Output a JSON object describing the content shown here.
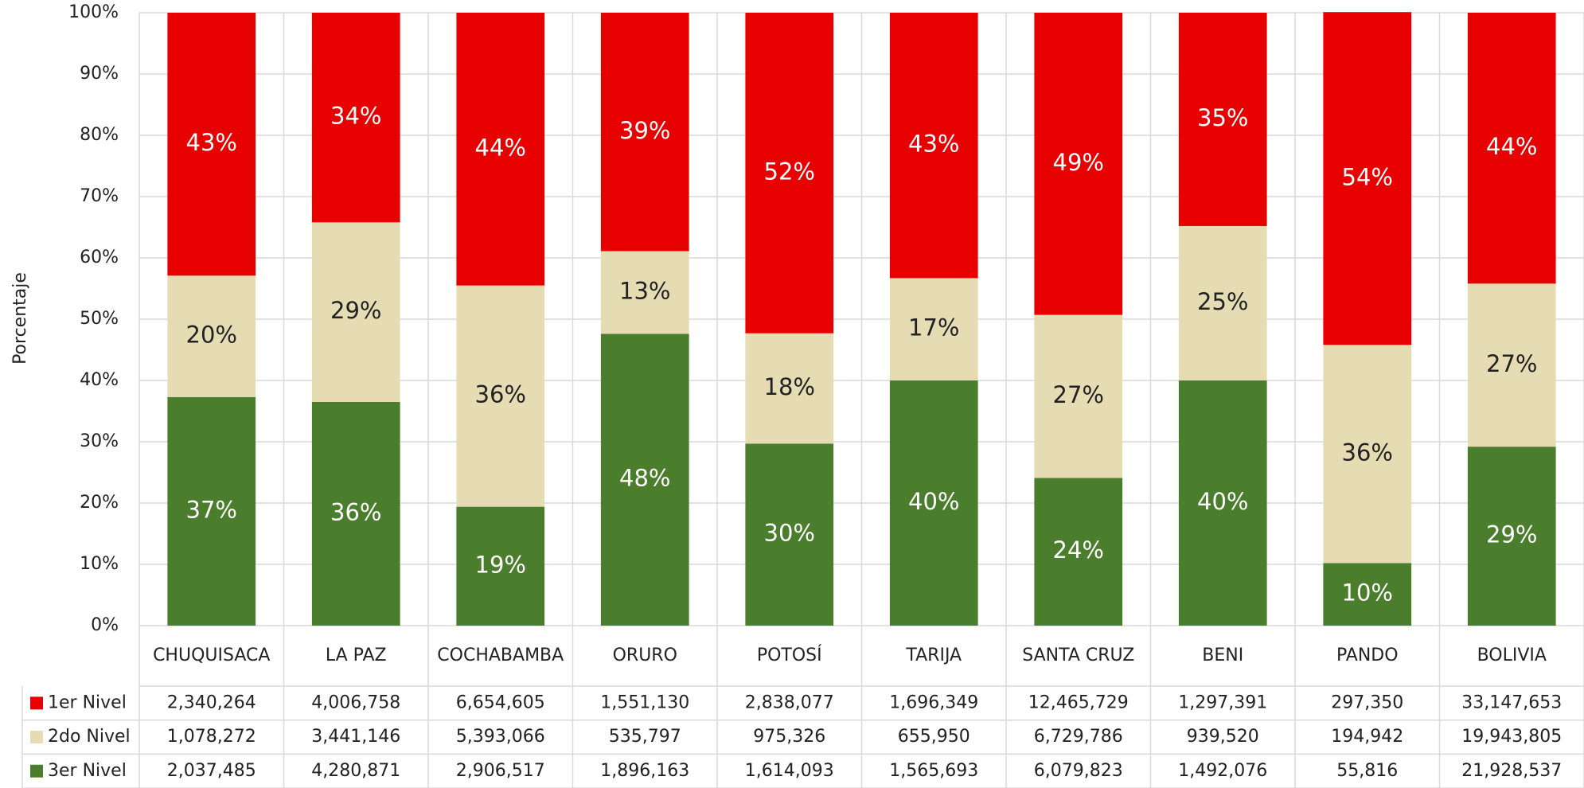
{
  "chart_data": {
    "type": "stacked-bar-100",
    "y_label": "Porcentaje",
    "categories": [
      "CHUQUISACA",
      "LA PAZ",
      "COCHABAMBA",
      "ORURO",
      "POTOSÍ",
      "TARIJA",
      "SANTA CRUZ",
      "BENI",
      "PANDO",
      "BOLIVIA"
    ],
    "series": [
      {
        "name": "1er Nivel",
        "color": "#e60000",
        "values": [
          42.9,
          34.2,
          44.5,
          38.9,
          52.3,
          43.3,
          49.3,
          34.8,
          54.3,
          44.2
        ],
        "value_labels": [
          "43%",
          "34%",
          "44%",
          "39%",
          "52%",
          "43%",
          "49%",
          "35%",
          "54%",
          "44%"
        ],
        "table": [
          "2,340,264",
          "4,006,758",
          "6,654,605",
          "1,551,130",
          "2,838,077",
          "1,696,349",
          "12,465,729",
          "1,297,391",
          "297,350",
          "33,147,653"
        ]
      },
      {
        "name": "2do Nivel",
        "color": "#e6dcb4",
        "values": [
          19.8,
          29.3,
          36.1,
          13.5,
          18.0,
          16.7,
          26.6,
          25.2,
          35.6,
          26.6
        ],
        "value_labels": [
          "20%",
          "29%",
          "36%",
          "13%",
          "18%",
          "17%",
          "27%",
          "25%",
          "36%",
          "27%"
        ],
        "table": [
          "1,078,272",
          "3,441,146",
          "5,393,066",
          "535,797",
          "975,326",
          "655,950",
          "6,729,786",
          "939,520",
          "194,942",
          "19,943,805"
        ]
      },
      {
        "name": "3er Nivel",
        "color": "#4a7d2c",
        "values": [
          37.3,
          36.5,
          19.4,
          47.6,
          29.7,
          40.0,
          24.1,
          40.0,
          10.2,
          29.2
        ],
        "value_labels": [
          "37%",
          "36%",
          "19%",
          "48%",
          "30%",
          "40%",
          "24%",
          "40%",
          "10%",
          "29%"
        ],
        "table": [
          "2,037,485",
          "4,280,871",
          "2,906,517",
          "1,896,163",
          "1,614,093",
          "1,565,693",
          "6,079,823",
          "1,492,076",
          "55,816",
          "21,928,537"
        ]
      }
    ],
    "ylim": [
      0,
      100
    ],
    "yticks": [
      {
        "value": 0,
        "label": "0%"
      },
      {
        "value": 10,
        "label": "10%"
      },
      {
        "value": 20,
        "label": "20%"
      },
      {
        "value": 30,
        "label": "30%"
      },
      {
        "value": 40,
        "label": "40%"
      },
      {
        "value": 50,
        "label": "50%"
      },
      {
        "value": 60,
        "label": "60%"
      },
      {
        "value": 70,
        "label": "70%"
      },
      {
        "value": 80,
        "label": "80%"
      },
      {
        "value": 90,
        "label": "90%"
      },
      {
        "value": 100,
        "label": "100%"
      }
    ],
    "grid": true
  }
}
